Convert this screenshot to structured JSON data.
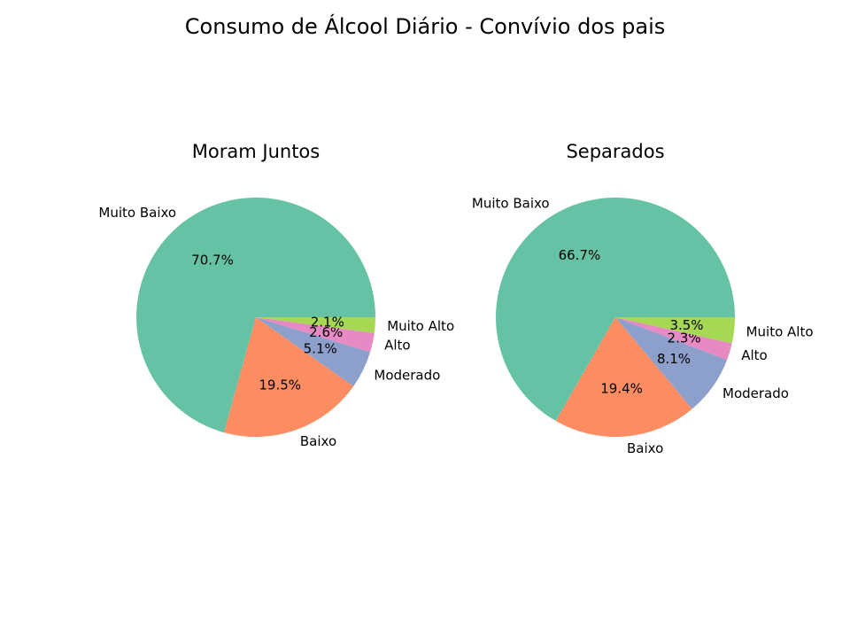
{
  "colors": {
    "Muito Baixo": "#66c2a5",
    "Baixo": "#fc8d62",
    "Moderado": "#8da0cb",
    "Alto": "#e78ac3",
    "Muito Alto": "#a6d854"
  },
  "chart_data": {
    "type": "pie",
    "title": "Consumo de Álcool Diário - Convívio dos pais",
    "charts": [
      {
        "title": "Moram Juntos",
        "start_angle_deg": 0,
        "direction": "counterclockwise",
        "slices": [
          {
            "label": "Muito Baixo",
            "value": 70.7,
            "pct_label": "70.7%"
          },
          {
            "label": "Baixo",
            "value": 19.5,
            "pct_label": "19.5%"
          },
          {
            "label": "Moderado",
            "value": 5.1,
            "pct_label": "5.1%"
          },
          {
            "label": "Alto",
            "value": 2.6,
            "pct_label": "2.6%"
          },
          {
            "label": "Muito Alto",
            "value": 2.1,
            "pct_label": "2.1%"
          }
        ]
      },
      {
        "title": "Separados",
        "start_angle_deg": 0,
        "direction": "counterclockwise",
        "slices": [
          {
            "label": "Muito Baixo",
            "value": 66.7,
            "pct_label": "66.7%"
          },
          {
            "label": "Baixo",
            "value": 19.4,
            "pct_label": "19.4%"
          },
          {
            "label": "Moderado",
            "value": 8.1,
            "pct_label": "8.1%"
          },
          {
            "label": "Alto",
            "value": 2.3,
            "pct_label": "2.3%"
          },
          {
            "label": "Muito Alto",
            "value": 3.5,
            "pct_label": "3.5%"
          }
        ]
      }
    ]
  }
}
